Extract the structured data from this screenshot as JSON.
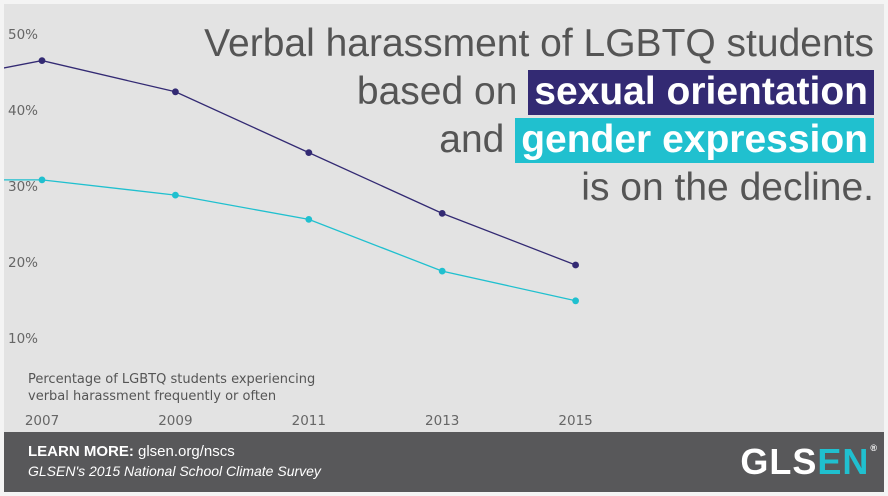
{
  "colors": {
    "accent_purple": "#332a73",
    "accent_cyan": "#20c0cf",
    "footer_bg": "#58585a",
    "panel_bg": "#e3e3e3"
  },
  "headline": {
    "line1": "Verbal harassment of LGBTQ students",
    "line2_prefix": "based on",
    "line2_highlight": "sexual orientation",
    "line3_prefix": "and",
    "line3_highlight": "gender expression",
    "line4": "is on the decline."
  },
  "chart_data": {
    "type": "line",
    "x": [
      2006,
      2007,
      2009,
      2011,
      2013,
      2015
    ],
    "x_ticks": [
      "2007",
      "2009",
      "2011",
      "2013",
      "2015"
    ],
    "y_ticks": [
      "50%",
      "40%",
      "30%",
      "20%",
      "10%"
    ],
    "ylim": [
      10,
      50
    ],
    "ylabel_line1": "Percentage of LGBTQ students experiencing",
    "ylabel_line2": "verbal harassment frequently or often",
    "grid": false,
    "series": [
      {
        "key": "sexual-orientation",
        "color": "#332a73",
        "x": [
          2006,
          2007,
          2009,
          2011,
          2013,
          2015
        ],
        "values": [
          44.8,
          46.5,
          42.4,
          34.4,
          26.4,
          19.6
        ],
        "markers_from": 1
      },
      {
        "key": "gender-expression",
        "color": "#20c0cf",
        "x": [
          2006,
          2007,
          2009,
          2011,
          2013,
          2015
        ],
        "values": [
          30.8,
          30.8,
          28.8,
          25.6,
          18.8,
          14.9
        ],
        "markers_from": 1
      }
    ]
  },
  "footer": {
    "learn_label": "LEARN MORE:",
    "learn_url": "glsen.org/nscs",
    "survey": "GLSEN's 2015 National School Climate Survey",
    "logo_main": "GLS",
    "logo_accent": "EN",
    "logo_reg": "®"
  }
}
